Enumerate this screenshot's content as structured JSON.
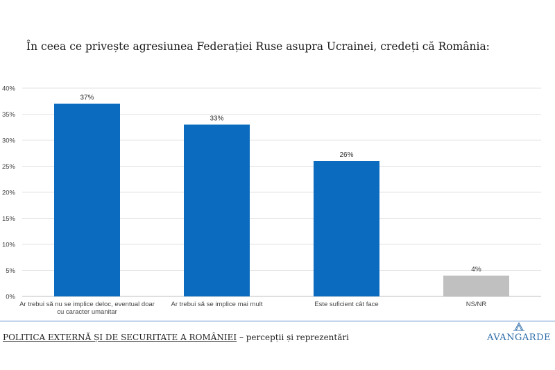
{
  "question": "În ceea ce privește agresiunea Federației Ruse asupra Ucrainei, credeți că România:",
  "chart_data": {
    "type": "bar",
    "categories": [
      [
        "Ar trebui să nu se implice deloc, eventual doar",
        "cu caracter umanitar"
      ],
      [
        "Ar trebui să se implice mai mult"
      ],
      [
        "Este suficient cât face"
      ],
      [
        "NS/NR"
      ]
    ],
    "values": [
      37,
      33,
      26,
      4
    ],
    "data_labels": [
      "37%",
      "33%",
      "26%",
      "4%"
    ],
    "bar_colors": [
      "#0a6bbf",
      "#0a6bbf",
      "#0a6bbf",
      "#c0c0c0"
    ],
    "y_ticks": [
      "0%",
      "5%",
      "10%",
      "15%",
      "20%",
      "25%",
      "30%",
      "35%",
      "40%"
    ],
    "ylim": [
      0,
      40
    ],
    "grid": true
  },
  "footer": {
    "title": "POLITICA EXTERNĂ ȘI DE SECURITATE A ROMÂNIEI",
    "subtitle": " – percepții și reprezentări"
  },
  "logo": {
    "text": "AVANGARDE",
    "color": "#2a6aa8"
  }
}
